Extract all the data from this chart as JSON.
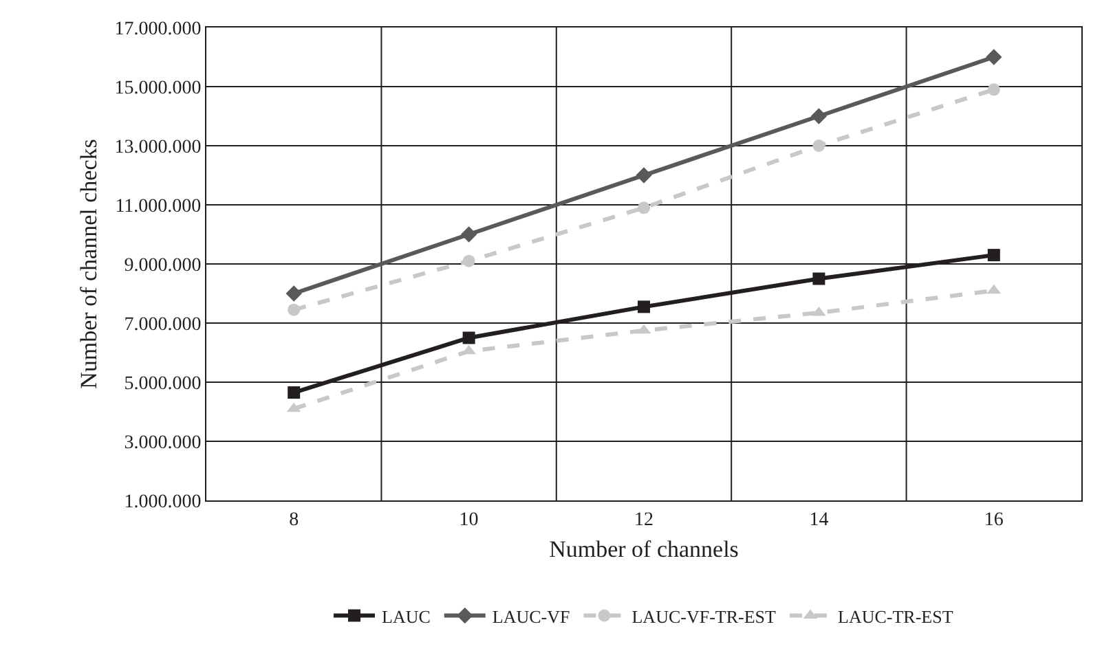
{
  "chart_data": {
    "type": "line",
    "xlabel": "Number of channels",
    "ylabel": "Number of channel checks",
    "categories": [
      "8",
      "10",
      "12",
      "14",
      "16"
    ],
    "series": [
      {
        "name": "LAUC",
        "color": "#231f20",
        "marker": "square",
        "line_style": "solid",
        "values": [
          4650000,
          6500000,
          7550000,
          8500000,
          9300000
        ]
      },
      {
        "name": "LAUC-VF",
        "color": "#58595b",
        "marker": "diamond",
        "line_style": "solid",
        "values": [
          8000000,
          10000000,
          12000000,
          14000000,
          16000000
        ]
      },
      {
        "name": "LAUC-VF-TR-EST",
        "color": "#c8c8c8",
        "marker": "circle",
        "line_style": "dashed",
        "values": [
          7450000,
          9100000,
          10900000,
          13000000,
          14900000
        ]
      },
      {
        "name": "LAUC-TR-EST",
        "color": "#c8c8c8",
        "marker": "triangle",
        "line_style": "dashed",
        "values": [
          4100000,
          6050000,
          6750000,
          7350000,
          8100000
        ]
      }
    ],
    "ylim": [
      1000000,
      17000000
    ],
    "yticks": [
      {
        "value": 1000000,
        "label": "1.000.000"
      },
      {
        "value": 3000000,
        "label": "3.000.000"
      },
      {
        "value": 5000000,
        "label": "5.000.000"
      },
      {
        "value": 7000000,
        "label": "7.000.000"
      },
      {
        "value": 9000000,
        "label": "9.000.000"
      },
      {
        "value": 11000000,
        "label": "11.000.000"
      },
      {
        "value": 13000000,
        "label": "13.000.000"
      },
      {
        "value": 15000000,
        "label": "15.000.000"
      },
      {
        "value": 17000000,
        "label": "17.000.000"
      }
    ],
    "grid": true,
    "legend": "bottom"
  }
}
